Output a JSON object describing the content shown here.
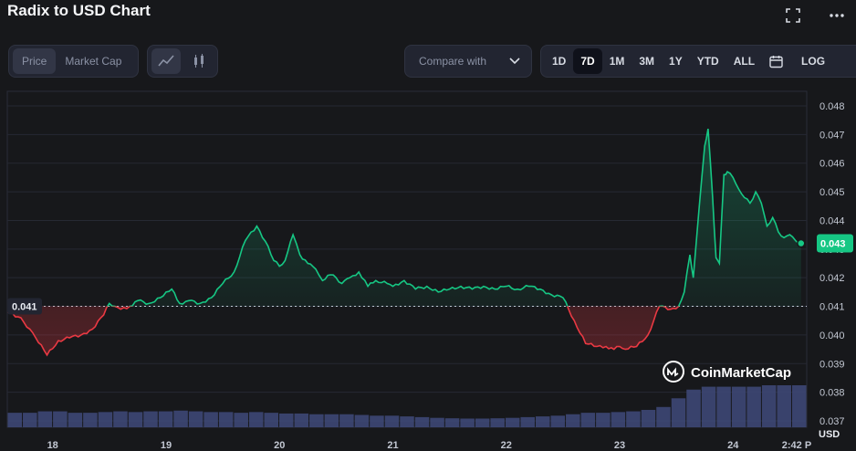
{
  "title": "Radix to USD Chart",
  "toolbar": {
    "expand_icon": "expand-icon",
    "more_icon": "more-icon",
    "price_label": "Price",
    "marketcap_label": "Market Cap",
    "line_icon": "line-chart-icon",
    "candle_icon": "candlestick-icon",
    "compare_label": "Compare with",
    "ranges": [
      "1D",
      "7D",
      "1M",
      "3M",
      "1Y",
      "YTD",
      "ALL"
    ],
    "active_range": "7D",
    "calendar_icon": "calendar-icon",
    "log_label": "LOG"
  },
  "colors": {
    "up": "#16c784",
    "down": "#ea3943",
    "volume": "#3f4a7a",
    "background": "#17181b"
  },
  "watermark": "CoinMarketCap",
  "chart_data": {
    "type": "line",
    "ylim": [
      0.037,
      0.0485
    ],
    "yticks": [
      "0.048",
      "0.047",
      "0.046",
      "0.045",
      "0.044",
      "0.043",
      "0.042",
      "0.041",
      "0.040",
      "0.039",
      "0.038",
      "0.037"
    ],
    "xticks": [
      "18",
      "19",
      "20",
      "21",
      "22",
      "23",
      "24",
      "2:42 P"
    ],
    "xlim": [
      17.6,
      24.65
    ],
    "baseline": 0.041,
    "baseline_label": "0.041",
    "current_price_label": "0.043",
    "y_unit": "USD",
    "series": [
      {
        "x": [
          17.6,
          17.72,
          17.85,
          17.95,
          18.05,
          18.15,
          18.25,
          18.35,
          18.45,
          18.5,
          18.55,
          18.6,
          18.68,
          18.75,
          18.85,
          18.95,
          19.05,
          19.12,
          19.2,
          19.3,
          19.4,
          19.5,
          19.6,
          19.7,
          19.8,
          19.9,
          19.95,
          20.0,
          20.05,
          20.12,
          20.18,
          20.25,
          20.32,
          20.38,
          20.45,
          20.5,
          20.55,
          20.62,
          20.7,
          20.78,
          20.85,
          20.95,
          21.0,
          21.1,
          21.2,
          21.3,
          21.4,
          21.5,
          21.6,
          21.7,
          21.8,
          21.9,
          22.0,
          22.1,
          22.2,
          22.3,
          22.4,
          22.5,
          22.6,
          22.7,
          22.8,
          22.88,
          22.95,
          23.0,
          23.05,
          23.15,
          23.25,
          23.35,
          23.45,
          23.52,
          23.57,
          23.62,
          23.65,
          23.7,
          23.75,
          23.78,
          23.82,
          23.85,
          23.88,
          23.92,
          23.95,
          24.0,
          24.05,
          24.1,
          24.15,
          24.2,
          24.25,
          24.3,
          24.35,
          24.4,
          24.45,
          24.5,
          24.55,
          24.6
        ],
        "y": [
          0.0408,
          0.0406,
          0.0399,
          0.0393,
          0.0398,
          0.0399,
          0.04,
          0.0402,
          0.0407,
          0.0411,
          0.041,
          0.0409,
          0.041,
          0.0412,
          0.0411,
          0.0413,
          0.0416,
          0.0411,
          0.0412,
          0.0411,
          0.0413,
          0.0418,
          0.0422,
          0.0433,
          0.0438,
          0.0431,
          0.0426,
          0.0424,
          0.0426,
          0.0435,
          0.0428,
          0.0425,
          0.0423,
          0.0419,
          0.0421,
          0.042,
          0.0418,
          0.042,
          0.0422,
          0.0417,
          0.0419,
          0.0418,
          0.0417,
          0.0419,
          0.0416,
          0.0417,
          0.0415,
          0.0416,
          0.0417,
          0.0416,
          0.0417,
          0.0416,
          0.0417,
          0.0416,
          0.0417,
          0.0416,
          0.0414,
          0.0413,
          0.0405,
          0.0397,
          0.0396,
          0.0396,
          0.0395,
          0.0396,
          0.0395,
          0.0396,
          0.04,
          0.041,
          0.0409,
          0.041,
          0.0415,
          0.0428,
          0.042,
          0.0444,
          0.0466,
          0.0472,
          0.0448,
          0.0427,
          0.0425,
          0.0456,
          0.0457,
          0.0455,
          0.0451,
          0.0448,
          0.0446,
          0.045,
          0.0446,
          0.0438,
          0.0441,
          0.0436,
          0.0434,
          0.0435,
          0.0433,
          0.0432
        ]
      }
    ],
    "volume": [
      1,
      1,
      1.1,
      1.1,
      1.0,
      1.0,
      1.05,
      1.1,
      1.05,
      1.1,
      1.1,
      1.15,
      1.1,
      1.05,
      1.05,
      1.0,
      1.05,
      1.0,
      0.95,
      0.95,
      0.9,
      0.9,
      0.9,
      0.85,
      0.8,
      0.8,
      0.75,
      0.7,
      0.65,
      0.62,
      0.6,
      0.6,
      0.62,
      0.65,
      0.7,
      0.75,
      0.8,
      0.9,
      1.0,
      1.0,
      1.05,
      1.1,
      1.2,
      1.4,
      2.0,
      2.6,
      2.8,
      2.8,
      2.8,
      2.8,
      2.9,
      2.9,
      2.9
    ]
  }
}
